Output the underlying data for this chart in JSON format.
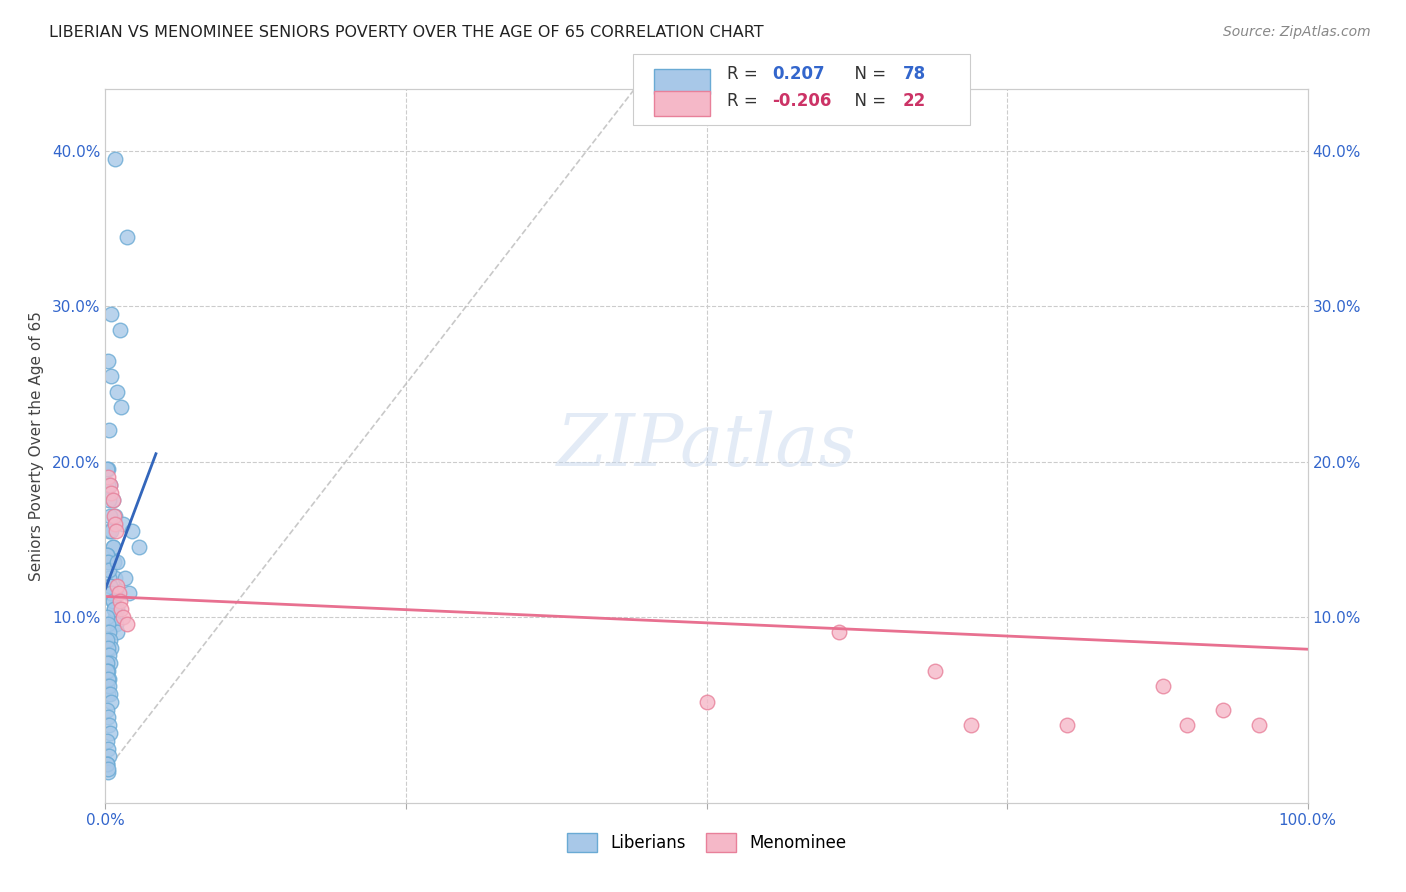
{
  "title": "LIBERIAN VS MENOMINEE SENIORS POVERTY OVER THE AGE OF 65 CORRELATION CHART",
  "source": "Source: ZipAtlas.com",
  "ylabel": "Seniors Poverty Over the Age of 65",
  "ylabel_ticks": [
    "10.0%",
    "20.0%",
    "30.0%",
    "40.0%"
  ],
  "ylabel_tick_vals": [
    0.1,
    0.2,
    0.3,
    0.4
  ],
  "xmin": 0.0,
  "xmax": 1.0,
  "ymin": -0.02,
  "ymax": 0.44,
  "liberian_color": "#a8c8e8",
  "liberian_edge": "#6aaad4",
  "menominee_color": "#f5b8c8",
  "menominee_edge": "#e8809a",
  "blue_line_color": "#3366bb",
  "pink_line_color": "#e87090",
  "R_liberian": 0.207,
  "N_liberian": 78,
  "R_menominee": -0.206,
  "N_menominee": 22,
  "legend_label_liberian": "Liberians",
  "legend_label_menominee": "Menominee",
  "liberian_x": [
    0.008,
    0.018,
    0.005,
    0.012,
    0.002,
    0.005,
    0.01,
    0.013,
    0.003,
    0.002,
    0.004,
    0.006,
    0.008,
    0.003,
    0.006,
    0.001,
    0.002,
    0.003,
    0.004,
    0.005,
    0.006,
    0.007,
    0.008,
    0.009,
    0.01,
    0.001,
    0.002,
    0.003,
    0.004,
    0.005,
    0.006,
    0.007,
    0.008,
    0.009,
    0.01,
    0.001,
    0.002,
    0.003,
    0.004,
    0.005,
    0.006,
    0.007,
    0.001,
    0.002,
    0.003,
    0.004,
    0.005,
    0.001,
    0.002,
    0.003,
    0.004,
    0.001,
    0.002,
    0.003,
    0.001,
    0.002,
    0.001,
    0.002,
    0.003,
    0.004,
    0.005,
    0.001,
    0.002,
    0.003,
    0.004,
    0.001,
    0.002,
    0.003,
    0.001,
    0.002,
    0.001,
    0.002,
    0.015,
    0.022,
    0.028,
    0.01,
    0.016,
    0.02
  ],
  "liberian_y": [
    0.395,
    0.345,
    0.295,
    0.285,
    0.265,
    0.255,
    0.245,
    0.235,
    0.22,
    0.195,
    0.185,
    0.175,
    0.165,
    0.155,
    0.145,
    0.195,
    0.185,
    0.175,
    0.165,
    0.155,
    0.145,
    0.135,
    0.125,
    0.115,
    0.105,
    0.14,
    0.135,
    0.125,
    0.12,
    0.115,
    0.11,
    0.105,
    0.1,
    0.095,
    0.09,
    0.14,
    0.135,
    0.13,
    0.12,
    0.115,
    0.11,
    0.105,
    0.1,
    0.095,
    0.09,
    0.085,
    0.08,
    0.085,
    0.08,
    0.075,
    0.07,
    0.07,
    0.065,
    0.06,
    0.055,
    0.05,
    0.065,
    0.06,
    0.055,
    0.05,
    0.045,
    0.04,
    0.035,
    0.03,
    0.025,
    0.02,
    0.015,
    0.01,
    0.005,
    0.0,
    0.005,
    0.002,
    0.16,
    0.155,
    0.145,
    0.135,
    0.125,
    0.115
  ],
  "menominee_x": [
    0.002,
    0.004,
    0.005,
    0.006,
    0.007,
    0.008,
    0.009,
    0.01,
    0.011,
    0.012,
    0.013,
    0.015,
    0.018,
    0.5,
    0.61,
    0.69,
    0.72,
    0.8,
    0.88,
    0.9,
    0.93,
    0.96
  ],
  "menominee_y": [
    0.19,
    0.185,
    0.18,
    0.175,
    0.165,
    0.16,
    0.155,
    0.12,
    0.115,
    0.11,
    0.105,
    0.1,
    0.095,
    0.045,
    0.09,
    0.065,
    0.03,
    0.03,
    0.055,
    0.03,
    0.04,
    0.03
  ],
  "blue_line_x": [
    0.0,
    0.042
  ],
  "blue_line_y": [
    0.118,
    0.205
  ],
  "pink_line_x": [
    0.0,
    1.0
  ],
  "pink_line_y": [
    0.113,
    0.079
  ],
  "diag_line_x": [
    0.0,
    0.44
  ],
  "diag_line_y": [
    0.0,
    0.44
  ]
}
